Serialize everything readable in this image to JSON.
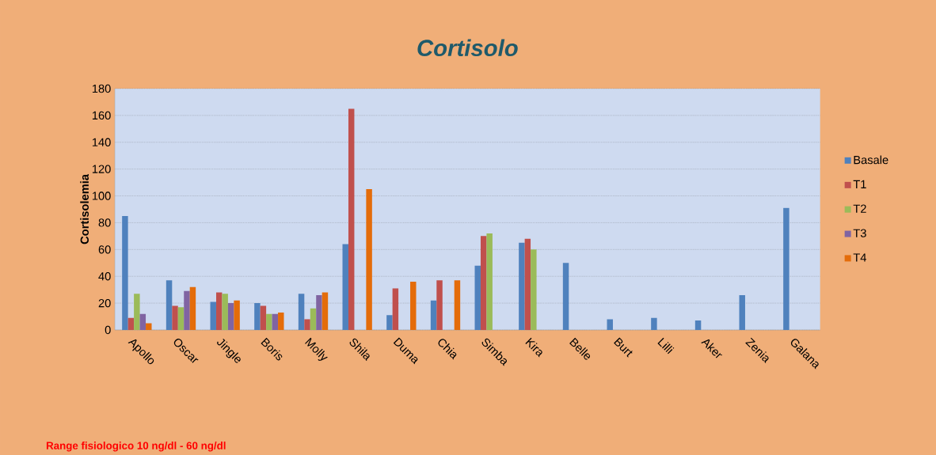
{
  "chart_data": {
    "type": "bar",
    "title": "Cortisolo",
    "ylabel": "Cortisolemia",
    "annotations": [
      "Range fisiologico  10 ng/dl - 60 ng/dl"
    ],
    "categories": [
      "Apollo",
      "Oscar",
      "Jingle",
      "Boris",
      "Molly",
      "Shila",
      "Duma",
      "Chia",
      "Simba",
      "Kira",
      "Belle",
      "Burt",
      "Lilli",
      "Aker",
      "Zenia",
      "Galana"
    ],
    "series": [
      {
        "name": "Basale",
        "color": "#4f81bd",
        "values": [
          85,
          37,
          21,
          20,
          27,
          64,
          11,
          22,
          48,
          65,
          50,
          8,
          9,
          7,
          26,
          91
        ]
      },
      {
        "name": "T1",
        "color": "#c0504d",
        "values": [
          9,
          18,
          28,
          18,
          8,
          165,
          31,
          37,
          70,
          68,
          null,
          null,
          null,
          null,
          null,
          null
        ]
      },
      {
        "name": "T2",
        "color": "#9bbb59",
        "values": [
          27,
          17,
          27,
          12,
          16,
          null,
          null,
          null,
          72,
          60,
          null,
          null,
          null,
          null,
          null,
          null
        ]
      },
      {
        "name": "T3",
        "color": "#8064a2",
        "values": [
          12,
          29,
          20,
          12,
          26,
          null,
          null,
          null,
          null,
          null,
          null,
          null,
          null,
          null,
          null,
          null
        ]
      },
      {
        "name": "T4",
        "color": "#e46c0a",
        "values": [
          5,
          32,
          22,
          13,
          28,
          105,
          36,
          37,
          null,
          null,
          null,
          null,
          null,
          null,
          null,
          null
        ]
      }
    ],
    "ylim": [
      0,
      180
    ],
    "yticks": [
      0,
      20,
      40,
      60,
      80,
      100,
      120,
      140,
      160,
      180
    ],
    "grid": "y",
    "legend": "right"
  }
}
